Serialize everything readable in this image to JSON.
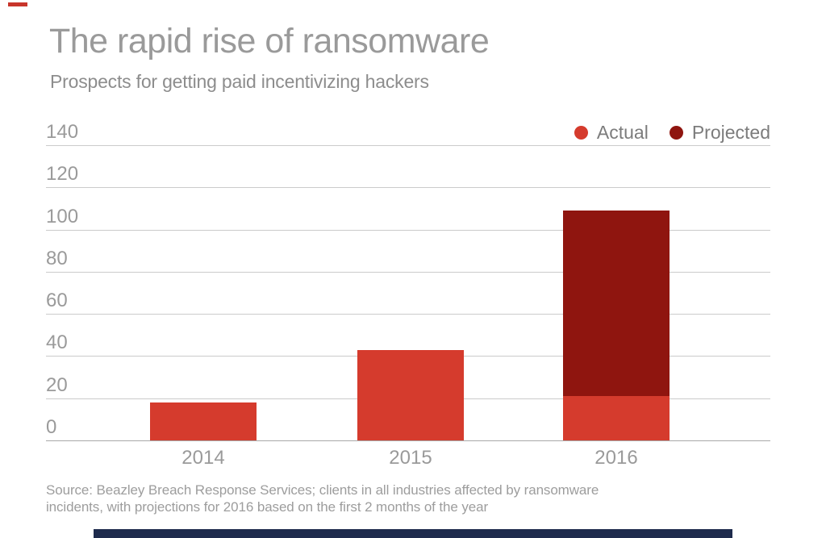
{
  "brand": {
    "accent_color": "#c8352b",
    "footer_color": "#1e2b4d"
  },
  "source": {
    "line1": "Source: Beazley Breach Response Services; clients in all industries affected by ransomware",
    "line2": "incidents, with projections for 2016 based on the first 2 months of the year"
  },
  "chart_data": {
    "type": "bar",
    "stacked": true,
    "title": "The rapid rise of ransomware",
    "subtitle": "Prospects for getting paid incentivizing hackers",
    "categories": [
      "2014",
      "2015",
      "2016"
    ],
    "series": [
      {
        "name": "Actual",
        "color": "#d53b2d",
        "values": [
          18,
          43,
          21
        ]
      },
      {
        "name": "Projected",
        "color": "#8f150f",
        "values": [
          0,
          0,
          88
        ]
      }
    ],
    "totals": [
      18,
      43,
      109
    ],
    "xlabel": "",
    "ylabel": "",
    "ylim": [
      0,
      140
    ],
    "yticks": [
      140,
      120,
      100,
      80,
      60,
      40,
      20,
      0
    ],
    "grid": "horizontal",
    "legend_position": "top-right",
    "text_color": "#9a9a9a",
    "gridline_color": "#cbcbcb"
  }
}
